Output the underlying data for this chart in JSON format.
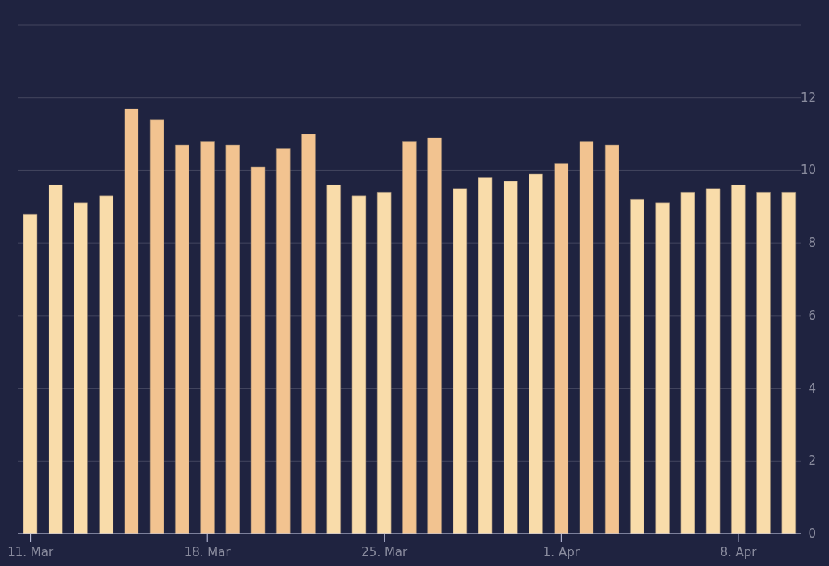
{
  "chart_data": {
    "type": "bar",
    "categories": [
      "11. Mar",
      null,
      null,
      null,
      null,
      null,
      null,
      "18. Mar",
      null,
      null,
      null,
      null,
      null,
      null,
      "25. Mar",
      null,
      null,
      null,
      null,
      null,
      null,
      "1. Apr",
      null,
      null,
      null,
      null,
      null,
      null,
      "8. Apr",
      null,
      null
    ],
    "values": [
      8.8,
      9.6,
      9.1,
      9.3,
      11.7,
      11.4,
      10.7,
      10.8,
      10.7,
      10.1,
      10.6,
      11.0,
      9.6,
      9.3,
      9.4,
      10.8,
      10.9,
      9.5,
      9.8,
      9.7,
      9.9,
      10.2,
      10.8,
      10.7,
      9.2,
      9.1,
      9.4,
      9.5,
      9.6,
      9.4,
      9.4
    ],
    "colors": [
      "#f9dcaa",
      "#f9dcaa",
      "#f9dcaa",
      "#f9dcaa",
      "#f2c390",
      "#f2c390",
      "#f2c390",
      "#f2c390",
      "#f2c390",
      "#f2c390",
      "#f2c390",
      "#f2c390",
      "#f9dcaa",
      "#f9dcaa",
      "#f9dcaa",
      "#f2c390",
      "#f2c390",
      "#f9dcaa",
      "#f9dcaa",
      "#f9dcaa",
      "#f9dcaa",
      "#f2c390",
      "#f2c390",
      "#f2c390",
      "#f9dcaa",
      "#f9dcaa",
      "#f9dcaa",
      "#f9dcaa",
      "#f9dcaa",
      "#f9dcaa",
      "#f9dcaa"
    ],
    "ylim": [
      0,
      14
    ],
    "yticks": [
      0,
      2,
      4,
      6,
      8,
      10,
      12,
      {
        "value": 14,
        "label": null
      }
    ],
    "grid": "y"
  }
}
